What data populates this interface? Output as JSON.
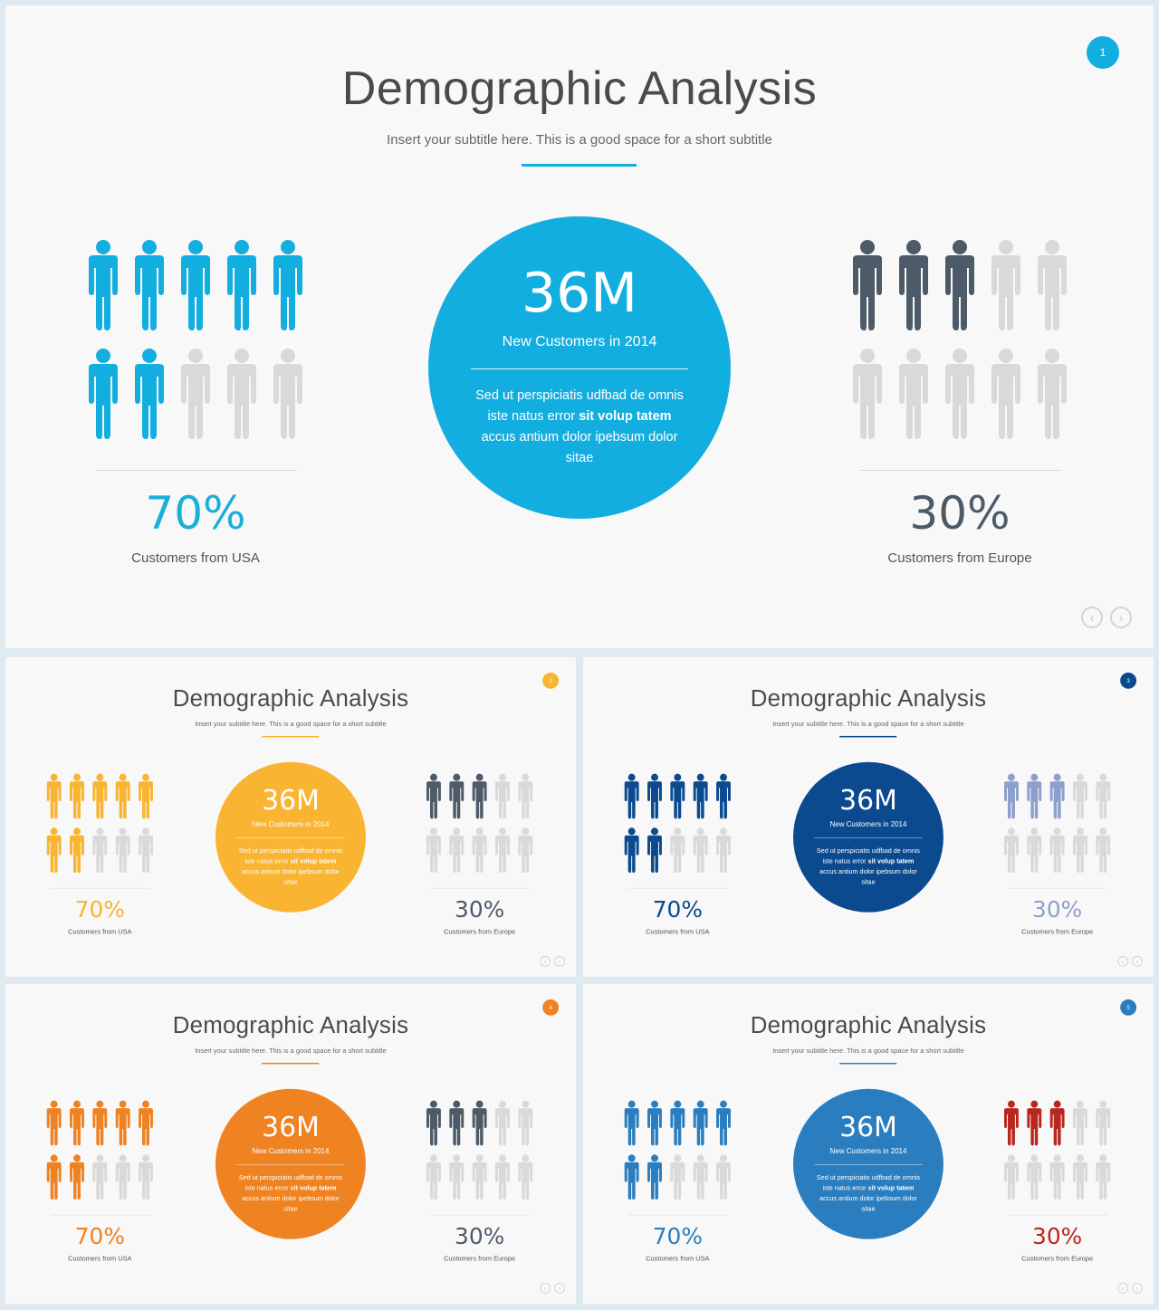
{
  "slides": [
    {
      "page": "1",
      "title": "Demographic Analysis",
      "subtitle": "Insert your subtitle here. This is a good space for a short subtitle",
      "colors": {
        "accent": "#13aee0",
        "circle": "#13aee0",
        "left_figures": "#13aee0",
        "left_pct": "#1aaed8",
        "right_figures": "#4d5a68",
        "right_pct": "#4d5a68",
        "inactive": "#d9d9d9",
        "rule": "#13aee0",
        "badge": "#13aee0"
      },
      "left_stat": {
        "value": "70%",
        "label": "Customers from USA",
        "filled": 7,
        "total": 10
      },
      "right_stat": {
        "value": "30%",
        "label": "Customers from Europe",
        "filled": 3,
        "total": 10
      },
      "circle": {
        "value": "36M",
        "caption": "New Customers in 2014",
        "body_1": "Sed ut perspiciatis udfbad de omnis iste natus error ",
        "body_bold": "sit volup tatem",
        "body_2": " accus antium dolor ipebsum dolor sitae"
      },
      "icons": {
        "prev": "chevron-left-icon",
        "next": "chevron-right-icon",
        "person": "person-icon"
      }
    },
    {
      "page": "2",
      "title": "Demographic Analysis",
      "subtitle": "Insert your subtitle here. This is a good space for a short subtitle",
      "colors": {
        "accent": "#f9b431",
        "circle": "#f9b431",
        "left_figures": "#f9b431",
        "left_pct": "#f9b431",
        "right_figures": "#4d5a68",
        "right_pct": "#4d5a68",
        "inactive": "#d9d9d9",
        "rule": "#f9b431",
        "badge": "#f9b431"
      },
      "left_stat": {
        "value": "70%",
        "label": "Customers from USA",
        "filled": 7,
        "total": 10
      },
      "right_stat": {
        "value": "30%",
        "label": "Customers from Europe",
        "filled": 3,
        "total": 10
      },
      "circle": {
        "value": "36M",
        "caption": "New Customers in 2014",
        "body_1": "Sed ut perspiciatis udfbad de omnis iste natus error ",
        "body_bold": "sit volup tatem",
        "body_2": " accus antium dolor ipebsum dolor sitae"
      },
      "icons": {
        "prev": "chevron-left-icon",
        "next": "chevron-right-icon",
        "person": "person-icon"
      }
    },
    {
      "page": "3",
      "title": "Demographic Analysis",
      "subtitle": "Insert your subtitle here. This is a good space for a short subtitle",
      "colors": {
        "accent": "#0b4a8f",
        "circle": "#0b4a8f",
        "left_figures": "#0b4a8f",
        "left_pct": "#0b4a8f",
        "right_figures": "#8d9fcc",
        "right_pct": "#8d9fcc",
        "inactive": "#d9d9d9",
        "rule": "#0b4a8f",
        "badge": "#0b4a8f"
      },
      "left_stat": {
        "value": "70%",
        "label": "Customers from USA",
        "filled": 7,
        "total": 10
      },
      "right_stat": {
        "value": "30%",
        "label": "Customers from Europe",
        "filled": 3,
        "total": 10
      },
      "circle": {
        "value": "36M",
        "caption": "New Customers in 2014",
        "body_1": "Sed ut perspiciatis udfbad de omnis iste natus error ",
        "body_bold": "sit volup tatem",
        "body_2": " accus antium dolor ipebsum dolor sitae"
      },
      "icons": {
        "prev": "chevron-left-icon",
        "next": "chevron-right-icon",
        "person": "person-icon"
      }
    },
    {
      "page": "4",
      "title": "Demographic Analysis",
      "subtitle": "Insert your subtitle here. This is a good space for a short subtitle",
      "colors": {
        "accent": "#ef8221",
        "circle": "#ef8221",
        "left_figures": "#ef8221",
        "left_pct": "#ef8221",
        "right_figures": "#4d5a68",
        "right_pct": "#4d5a68",
        "inactive": "#d9d9d9",
        "rule": "#ef8221",
        "badge": "#ef8221"
      },
      "left_stat": {
        "value": "70%",
        "label": "Customers from USA",
        "filled": 7,
        "total": 10
      },
      "right_stat": {
        "value": "30%",
        "label": "Customers from Europe",
        "filled": 3,
        "total": 10
      },
      "circle": {
        "value": "36M",
        "caption": "New Customers in 2014",
        "body_1": "Sed ut perspiciatis udfbad de omnis iste natus error ",
        "body_bold": "sit volup tatem",
        "body_2": " accus antium dolor ipebsum dolor sitae"
      },
      "icons": {
        "prev": "chevron-left-icon",
        "next": "chevron-right-icon",
        "person": "person-icon"
      }
    },
    {
      "page": "5",
      "title": "Demographic Analysis",
      "subtitle": "Insert your subtitle here. This is a good space for a short subtitle",
      "colors": {
        "accent": "#2a7ebf",
        "circle": "#2a7ebf",
        "left_figures": "#2a7ebf",
        "left_pct": "#2a7ebf",
        "right_figures": "#b8271e",
        "right_pct": "#b8271e",
        "inactive": "#d9d9d9",
        "rule": "#2a7ebf",
        "badge": "#2a7ebf"
      },
      "left_stat": {
        "value": "70%",
        "label": "Customers from USA",
        "filled": 7,
        "total": 10
      },
      "right_stat": {
        "value": "30%",
        "label": "Customers from Europe",
        "filled": 3,
        "total": 10
      },
      "circle": {
        "value": "36M",
        "caption": "New Customers in 2014",
        "body_1": "Sed ut perspiciatis udfbad de omnis iste natus error ",
        "body_bold": "sit volup tatem",
        "body_2": " accus antium dolor ipebsum dolor sitae"
      },
      "icons": {
        "prev": "chevron-left-icon",
        "next": "chevron-right-icon",
        "person": "person-icon"
      }
    }
  ]
}
